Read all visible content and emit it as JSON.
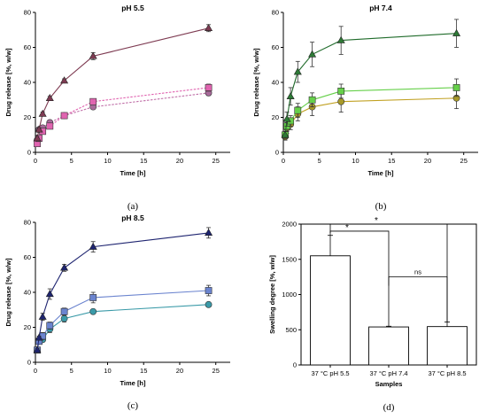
{
  "chart_data": [
    {
      "type": "line",
      "panel_label": "(a)",
      "title": "pH 5.5",
      "xlabel": "Time [h]",
      "ylabel": "Drug release [%, w/w]",
      "xlim": [
        0,
        27
      ],
      "ylim": [
        0,
        80
      ],
      "xticks": [
        "0",
        "5",
        "10",
        "15",
        "20",
        "25"
      ],
      "yticks": [
        "0",
        "20",
        "40",
        "60",
        "80"
      ],
      "grid": false,
      "series": [
        {
          "marker": "triangle",
          "color": "#7e3b52",
          "line": "#7e3b52",
          "dashed": false,
          "x": [
            0.25,
            0.5,
            1,
            2,
            4,
            8,
            24
          ],
          "y": [
            8,
            13,
            22,
            31,
            41,
            55,
            71
          ],
          "err": [
            1,
            1,
            1,
            1,
            1,
            2,
            2
          ]
        },
        {
          "marker": "square",
          "color": "#e064b0",
          "line": "#e064b0",
          "dashed": true,
          "x": [
            0.25,
            0.5,
            1,
            2,
            4,
            8,
            24
          ],
          "y": [
            5,
            8,
            12,
            15,
            21,
            29,
            37
          ],
          "err": [
            1,
            1,
            1,
            1,
            1,
            1.5,
            2
          ]
        },
        {
          "marker": "circle",
          "color": "#a86a9a",
          "line": "#c070a8",
          "dashed": true,
          "x": [
            0.25,
            0.5,
            1,
            2,
            4,
            8,
            24
          ],
          "y": [
            7,
            13,
            14,
            17,
            21,
            26,
            34
          ],
          "err": [
            1,
            1,
            1,
            1,
            1,
            1,
            1.5
          ]
        }
      ]
    },
    {
      "type": "line",
      "panel_label": "(b)",
      "title": "pH 7.4",
      "xlabel": "Time [h]",
      "ylabel": "Drug release [%, w/w]",
      "xlim": [
        0,
        27
      ],
      "ylim": [
        0,
        80
      ],
      "xticks": [
        "0",
        "5",
        "10",
        "15",
        "20",
        "25"
      ],
      "yticks": [
        "0",
        "20",
        "40",
        "60",
        "80"
      ],
      "grid": false,
      "series": [
        {
          "marker": "triangle",
          "color": "#2d7a36",
          "line": "#1f6b2a",
          "dashed": false,
          "x": [
            0.25,
            0.5,
            1,
            2,
            4,
            8,
            24
          ],
          "y": [
            10,
            19,
            32,
            46,
            56,
            64,
            68
          ],
          "err": [
            2,
            4,
            5,
            6,
            7,
            8,
            8
          ]
        },
        {
          "marker": "square",
          "color": "#66d04a",
          "line": "#66d04a",
          "dashed": false,
          "x": [
            0.25,
            0.5,
            1,
            2,
            4,
            8,
            24
          ],
          "y": [
            10,
            15,
            18,
            24,
            30,
            35,
            37
          ],
          "err": [
            2,
            3,
            3,
            4,
            4,
            4,
            5
          ]
        },
        {
          "marker": "circle",
          "color": "#a89a2a",
          "line": "#c0a020",
          "dashed": false,
          "x": [
            0.25,
            0.5,
            1,
            2,
            4,
            8,
            24
          ],
          "y": [
            9,
            14,
            16,
            22,
            26,
            29,
            31
          ],
          "err": [
            2,
            3,
            3,
            4,
            5,
            6,
            6
          ]
        }
      ]
    },
    {
      "type": "line",
      "panel_label": "(c)",
      "title": "pH 8.5",
      "xlabel": "Time [h]",
      "ylabel": "Drug release [%, w/w]",
      "xlim": [
        0,
        27
      ],
      "ylim": [
        0,
        80
      ],
      "xticks": [
        "0",
        "5",
        "10",
        "15",
        "20",
        "25"
      ],
      "yticks": [
        "0",
        "20",
        "40",
        "60",
        "80"
      ],
      "grid": false,
      "series": [
        {
          "marker": "triangle",
          "color": "#1e2470",
          "line": "#1e2470",
          "dashed": false,
          "x": [
            0.25,
            0.5,
            1,
            2,
            4,
            8,
            24
          ],
          "y": [
            7,
            14,
            26,
            39,
            54,
            66,
            74
          ],
          "err": [
            1,
            1,
            2,
            3,
            2,
            3,
            3
          ]
        },
        {
          "marker": "square",
          "color": "#6b84cf",
          "line": "#6b84cf",
          "dashed": false,
          "x": [
            0.25,
            0.5,
            1,
            2,
            4,
            8,
            24
          ],
          "y": [
            7,
            12,
            15,
            21,
            29,
            37,
            41
          ],
          "err": [
            1,
            1,
            2,
            2,
            2,
            3,
            3
          ]
        },
        {
          "marker": "circle",
          "color": "#3a9aa8",
          "line": "#3a9aa8",
          "dashed": false,
          "x": [
            0.25,
            0.5,
            1,
            2,
            4,
            8,
            24
          ],
          "y": [
            7,
            12,
            13,
            19,
            25,
            29,
            33
          ],
          "err": [
            1,
            1,
            1,
            2,
            2,
            1,
            1
          ]
        }
      ]
    },
    {
      "type": "bar",
      "panel_label": "(d)",
      "title": "",
      "xlabel": "Samples",
      "ylabel": "Swelling degree [%, w/w]",
      "ylim": [
        0,
        2000
      ],
      "yticks": [
        "0",
        "500",
        "1000",
        "1500",
        "2000"
      ],
      "categories": [
        "37 °C pH 5.5",
        "37 °C pH 7.4",
        "37 °C pH 8.5"
      ],
      "values": [
        1550,
        540,
        545
      ],
      "errors": [
        290,
        10,
        65
      ],
      "bar_color": "#ffffff",
      "significance": [
        {
          "pair": [
            0,
            1
          ],
          "label": "*",
          "level": 1900
        },
        {
          "pair": [
            0,
            2
          ],
          "label": "*",
          "level": 2000
        },
        {
          "pair": [
            1,
            2
          ],
          "label": "ns",
          "level": 1250
        }
      ]
    }
  ]
}
